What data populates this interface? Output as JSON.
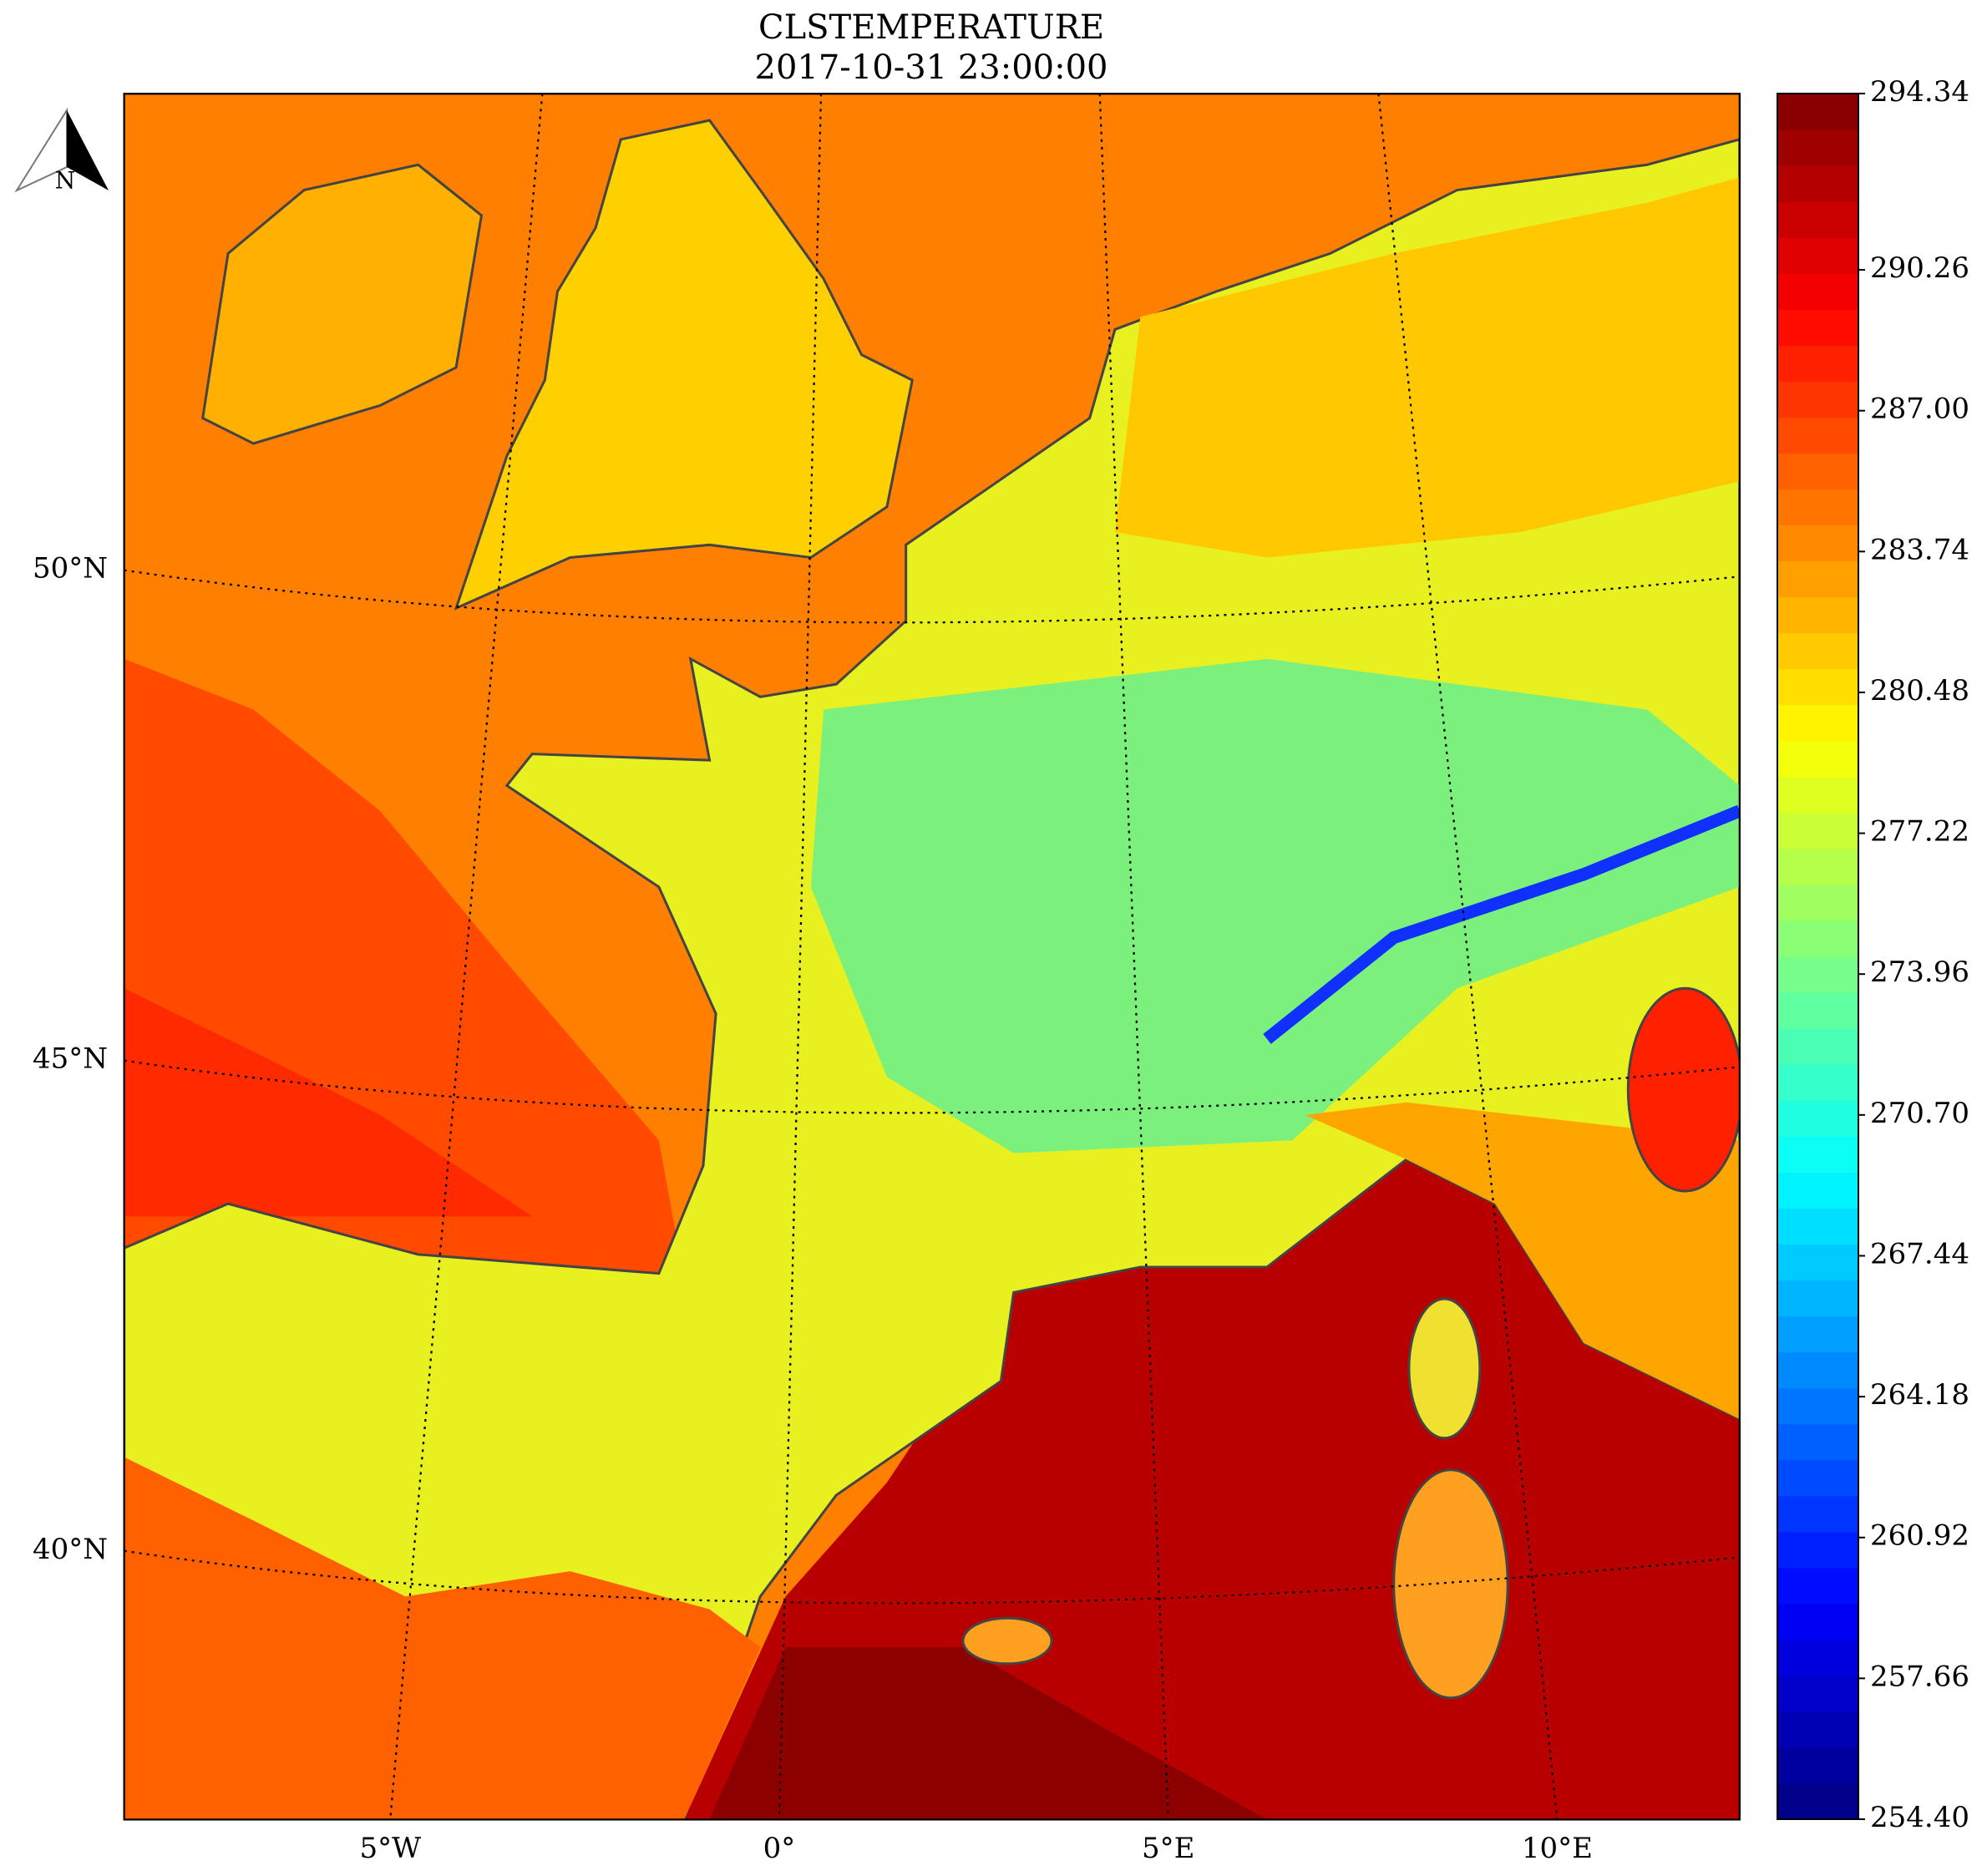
{
  "title": "CLSTEMPERATURE",
  "subtitle": "2017-10-31 23:00:00",
  "north_label": "N",
  "map": {
    "lat_labels": [
      {
        "value": 50,
        "label": "50°N"
      },
      {
        "value": 45,
        "label": "45°N"
      },
      {
        "value": 40,
        "label": "40°N"
      }
    ],
    "lon_labels": [
      {
        "value": -5,
        "label": "5°W"
      },
      {
        "value": 0,
        "label": "0°"
      },
      {
        "value": 5,
        "label": "5°E"
      },
      {
        "value": 10,
        "label": "10°E"
      }
    ]
  },
  "colorbar": {
    "colormap": "jet",
    "lim": [
      254.4,
      294.34
    ],
    "ticks": [
      {
        "value": 254.4,
        "label": "254.40"
      },
      257.66,
      260.92,
      264.18,
      267.44,
      {
        "value": 270.7,
        "label": "270.70"
      },
      273.96,
      277.22,
      280.48,
      283.74,
      {
        "value": 287.0,
        "label": "287.00"
      },
      290.26,
      294.34
    ]
  }
}
